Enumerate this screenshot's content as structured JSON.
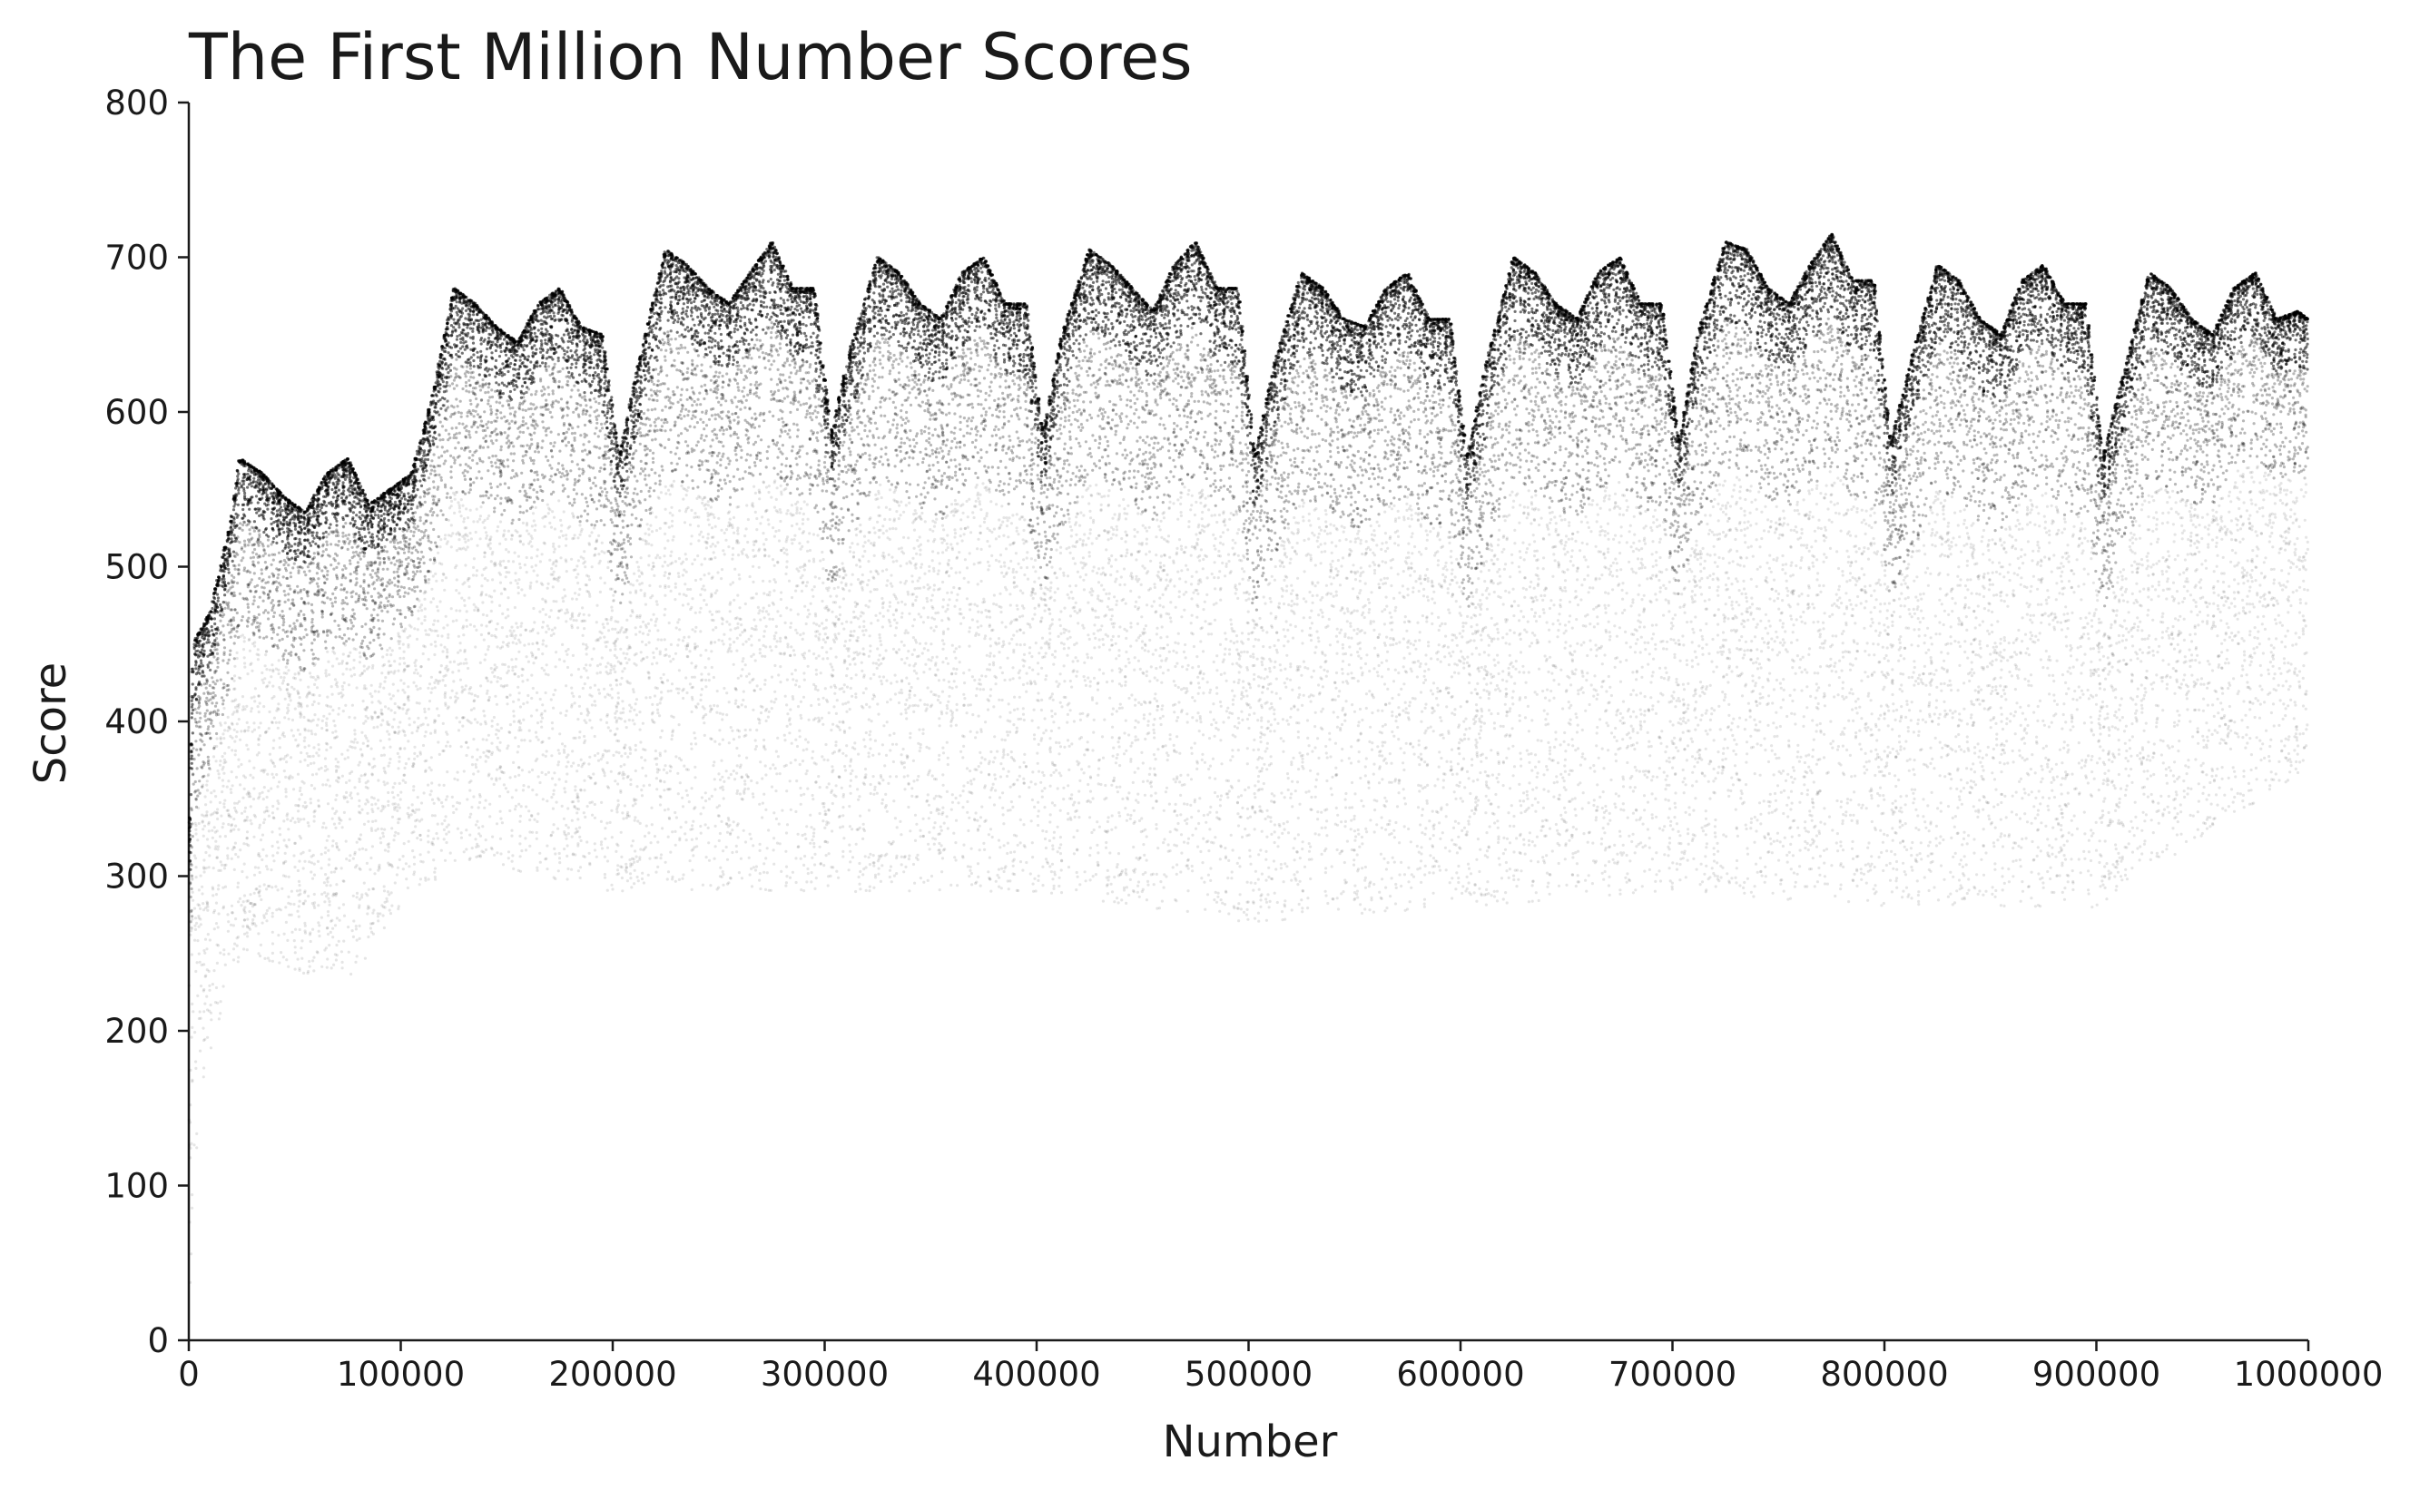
{
  "chart_data": {
    "type": "scatter",
    "title": "The First Million Number Scores",
    "xlabel": "Number",
    "ylabel": "Score",
    "xlim": [
      0,
      1000000
    ],
    "ylim": [
      0,
      800
    ],
    "xticks": [
      0,
      100000,
      200000,
      300000,
      400000,
      500000,
      600000,
      700000,
      800000,
      900000,
      1000000
    ],
    "yticks": [
      0,
      100,
      200,
      300,
      400,
      500,
      600,
      700,
      800
    ],
    "grid": false,
    "marker_color": "#000000",
    "density_upper_envelope": {
      "x": [
        0,
        2000,
        10000,
        20000,
        24000,
        35000,
        45000,
        55000,
        65000,
        75000,
        85000,
        95000,
        105000,
        115000,
        125000,
        135000,
        145000,
        155000,
        165000,
        175000,
        185000,
        195000,
        203000,
        212000,
        225000,
        235000,
        245000,
        255000,
        265000,
        275000,
        285000,
        295000,
        303000,
        312000,
        325000,
        335000,
        345000,
        355000,
        365000,
        375000,
        385000,
        395000,
        403000,
        412000,
        425000,
        435000,
        445000,
        455000,
        465000,
        475000,
        485000,
        495000,
        503000,
        512000,
        525000,
        535000,
        545000,
        555000,
        565000,
        575000,
        585000,
        595000,
        603000,
        612000,
        625000,
        635000,
        645000,
        655000,
        665000,
        675000,
        685000,
        695000,
        703000,
        712000,
        725000,
        735000,
        745000,
        755000,
        765000,
        775000,
        785000,
        795000,
        803000,
        812000,
        825000,
        835000,
        845000,
        855000,
        865000,
        875000,
        885000,
        895000,
        903000,
        912000,
        925000,
        935000,
        945000,
        955000,
        965000,
        975000,
        985000,
        995000,
        1000000
      ],
      "y": [
        310,
        460,
        480,
        540,
        580,
        570,
        555,
        545,
        570,
        580,
        550,
        560,
        570,
        620,
        690,
        680,
        665,
        655,
        680,
        690,
        665,
        660,
        580,
        640,
        715,
        705,
        690,
        680,
        700,
        720,
        690,
        690,
        595,
        650,
        710,
        700,
        680,
        670,
        700,
        710,
        680,
        680,
        595,
        660,
        715,
        705,
        690,
        675,
        705,
        720,
        690,
        690,
        580,
        640,
        700,
        690,
        670,
        665,
        690,
        700,
        670,
        670,
        580,
        640,
        710,
        700,
        680,
        670,
        700,
        710,
        680,
        680,
        590,
        660,
        720,
        715,
        690,
        680,
        705,
        725,
        695,
        695,
        590,
        640,
        705,
        695,
        670,
        660,
        695,
        705,
        680,
        680,
        580,
        630,
        700,
        690,
        670,
        660,
        690,
        700,
        670,
        675,
        670
      ]
    },
    "density_lower_envelope": {
      "x": [
        0,
        5000,
        15000,
        25000,
        45000,
        75000,
        100000,
        130000,
        200000,
        300000,
        400000,
        500000,
        600000,
        700000,
        800000,
        900000,
        1000000
      ],
      "y": [
        30,
        170,
        220,
        260,
        250,
        240,
        290,
        320,
        300,
        300,
        300,
        280,
        290,
        300,
        290,
        290,
        380
      ]
    }
  }
}
